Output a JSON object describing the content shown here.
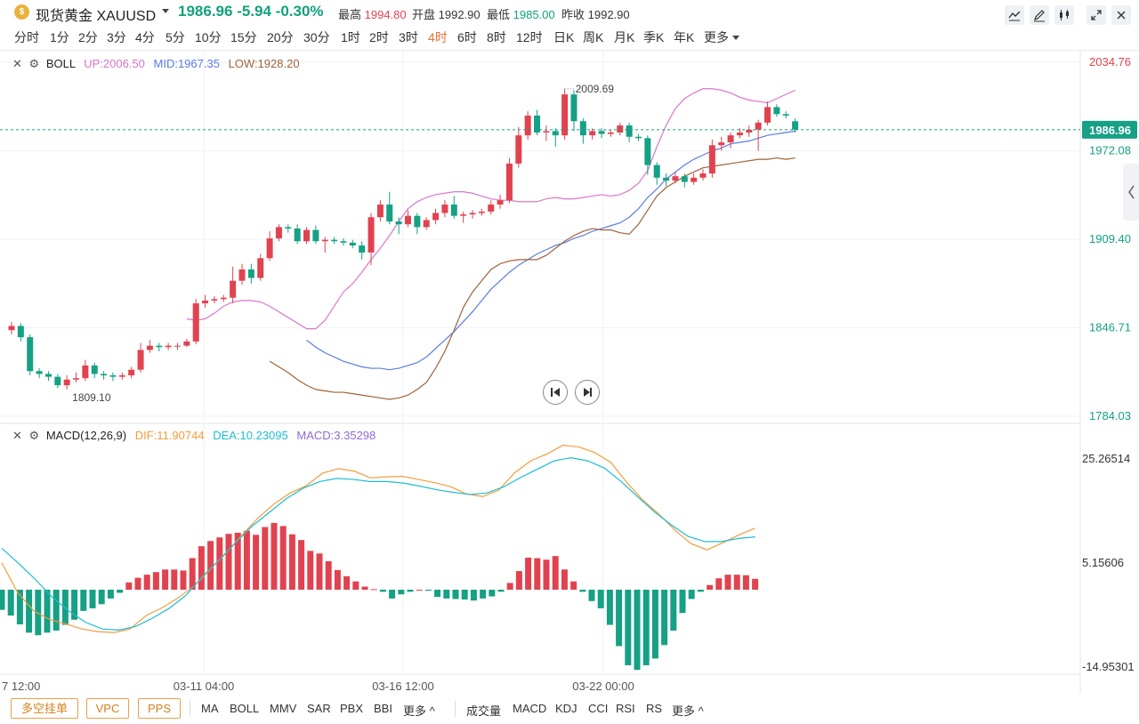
{
  "header": {
    "coin_icon": "gold-coin-icon",
    "symbol": "现货黄金 XAUUSD",
    "last": "1986.96",
    "change": "-5.94",
    "change_pct": "-0.30%",
    "high_label": "最高",
    "high": "1994.80",
    "open_label": "开盘",
    "open": "1992.90",
    "low_label": "最低",
    "low": "1985.00",
    "prev_label": "昨收",
    "prev": "1992.90",
    "tools": [
      "line-tool-icon",
      "pen-tool-icon",
      "candle-settings-icon",
      "fullscreen-icon"
    ]
  },
  "timeframes": {
    "items": [
      "分时",
      "1分",
      "2分",
      "3分",
      "4分",
      "5分",
      "10分",
      "15分",
      "20分",
      "30分",
      "1时",
      "2时",
      "3时",
      "4时",
      "6时",
      "8时",
      "12时",
      "日K",
      "周K",
      "月K",
      "季K",
      "年K",
      "更多"
    ],
    "active": "4时"
  },
  "boll": {
    "label": "BOLL",
    "up": "UP:2006.50",
    "mid": "MID:1967.35",
    "low": "LOW:1928.20"
  },
  "macd": {
    "label": "MACD(12,26,9)",
    "dif": "DIF:11.90744",
    "dea": "DEA:10.23095",
    "hist": "MACD:3.35298"
  },
  "price_axis": [
    "2034.76",
    "1972.08",
    "1909.40",
    "1846.71",
    "1784.03"
  ],
  "current_price_tag": "1986.96",
  "macd_axis": [
    "25.26514",
    "5.15606",
    "-14.95301"
  ],
  "time_axis": [
    "7 12:00",
    "03-11 04:00",
    "03-16 12:00",
    "03-22 00:00"
  ],
  "annotations": {
    "peak": "2009.69",
    "trough": "1809.10"
  },
  "colors": {
    "up": "#e0434f",
    "down": "#16a085",
    "boll_up": "#d977c9",
    "boll_mid": "#5b7be6",
    "boll_low": "#a0623a",
    "dif": "#f39c3d",
    "dea": "#1fbcd2",
    "macd_text": "#8e6ad8"
  },
  "bottom_bar": {
    "pills": [
      "多空挂单",
      "VPC",
      "PPS"
    ],
    "main_indicators": [
      "MA",
      "BOLL",
      "MMV",
      "SAR",
      "PBX",
      "BBI",
      "更多 ^"
    ],
    "sub_indicators": [
      "成交量",
      "MACD",
      "KDJ",
      "CCI",
      "RSI",
      "RS",
      "更多 ^"
    ]
  },
  "chart_data": {
    "type": "candlestick",
    "title": "现货黄金 XAUUSD",
    "ylim": [
      1784.03,
      2034.76
    ],
    "x_ticks": [
      "7 12:00",
      "03-11 04:00",
      "03-16 12:00",
      "03-22 00:00"
    ],
    "candles": [
      {
        "o": 1845,
        "c": 1848,
        "h": 1851,
        "l": 1842
      },
      {
        "o": 1848,
        "c": 1840,
        "h": 1850,
        "l": 1837
      },
      {
        "o": 1840,
        "c": 1816,
        "h": 1842,
        "l": 1813
      },
      {
        "o": 1816,
        "c": 1814,
        "h": 1818,
        "l": 1811
      },
      {
        "o": 1814,
        "c": 1812,
        "h": 1816,
        "l": 1809
      },
      {
        "o": 1812,
        "c": 1806,
        "h": 1814,
        "l": 1804
      },
      {
        "o": 1806,
        "c": 1810,
        "h": 1813,
        "l": 1803
      },
      {
        "o": 1810,
        "c": 1811,
        "h": 1815,
        "l": 1808
      },
      {
        "o": 1811,
        "c": 1820,
        "h": 1824,
        "l": 1809
      },
      {
        "o": 1820,
        "c": 1814,
        "h": 1822,
        "l": 1811
      },
      {
        "o": 1814,
        "c": 1813,
        "h": 1816,
        "l": 1810
      },
      {
        "o": 1813,
        "c": 1812,
        "h": 1815,
        "l": 1809
      },
      {
        "o": 1812,
        "c": 1813,
        "h": 1815,
        "l": 1810
      },
      {
        "o": 1813,
        "c": 1817,
        "h": 1819,
        "l": 1811
      },
      {
        "o": 1817,
        "c": 1831,
        "h": 1836,
        "l": 1815
      },
      {
        "o": 1831,
        "c": 1834,
        "h": 1838,
        "l": 1829
      },
      {
        "o": 1834,
        "c": 1833,
        "h": 1836,
        "l": 1830
      },
      {
        "o": 1833,
        "c": 1834,
        "h": 1836,
        "l": 1831
      },
      {
        "o": 1834,
        "c": 1834,
        "h": 1836,
        "l": 1831
      },
      {
        "o": 1834,
        "c": 1837,
        "h": 1839,
        "l": 1833
      },
      {
        "o": 1837,
        "c": 1864,
        "h": 1867,
        "l": 1835
      },
      {
        "o": 1864,
        "c": 1866,
        "h": 1870,
        "l": 1861
      },
      {
        "o": 1866,
        "c": 1867,
        "h": 1869,
        "l": 1864
      },
      {
        "o": 1867,
        "c": 1868,
        "h": 1870,
        "l": 1865
      },
      {
        "o": 1868,
        "c": 1880,
        "h": 1890,
        "l": 1864
      },
      {
        "o": 1880,
        "c": 1888,
        "h": 1892,
        "l": 1877
      },
      {
        "o": 1888,
        "c": 1882,
        "h": 1892,
        "l": 1878
      },
      {
        "o": 1882,
        "c": 1896,
        "h": 1899,
        "l": 1880
      },
      {
        "o": 1896,
        "c": 1910,
        "h": 1915,
        "l": 1894
      },
      {
        "o": 1910,
        "c": 1918,
        "h": 1920,
        "l": 1908
      },
      {
        "o": 1918,
        "c": 1917,
        "h": 1920,
        "l": 1914
      },
      {
        "o": 1917,
        "c": 1908,
        "h": 1920,
        "l": 1906
      },
      {
        "o": 1908,
        "c": 1916,
        "h": 1918,
        "l": 1906
      },
      {
        "o": 1916,
        "c": 1908,
        "h": 1919,
        "l": 1906
      },
      {
        "o": 1908,
        "c": 1909,
        "h": 1911,
        "l": 1900
      },
      {
        "o": 1909,
        "c": 1908,
        "h": 1911,
        "l": 1906
      },
      {
        "o": 1908,
        "c": 1907,
        "h": 1910,
        "l": 1905
      },
      {
        "o": 1907,
        "c": 1905,
        "h": 1909,
        "l": 1903
      },
      {
        "o": 1905,
        "c": 1900,
        "h": 1908,
        "l": 1895
      },
      {
        "o": 1900,
        "c": 1925,
        "h": 1928,
        "l": 1891
      },
      {
        "o": 1925,
        "c": 1934,
        "h": 1937,
        "l": 1922
      },
      {
        "o": 1934,
        "c": 1922,
        "h": 1943,
        "l": 1920
      },
      {
        "o": 1922,
        "c": 1920,
        "h": 1925,
        "l": 1913
      },
      {
        "o": 1920,
        "c": 1926,
        "h": 1930,
        "l": 1918
      },
      {
        "o": 1926,
        "c": 1918,
        "h": 1928,
        "l": 1913
      },
      {
        "o": 1918,
        "c": 1923,
        "h": 1925,
        "l": 1916
      },
      {
        "o": 1923,
        "c": 1928,
        "h": 1931,
        "l": 1920
      },
      {
        "o": 1928,
        "c": 1934,
        "h": 1937,
        "l": 1925
      },
      {
        "o": 1934,
        "c": 1926,
        "h": 1940,
        "l": 1924
      },
      {
        "o": 1926,
        "c": 1927,
        "h": 1929,
        "l": 1921
      },
      {
        "o": 1927,
        "c": 1928,
        "h": 1930,
        "l": 1924
      },
      {
        "o": 1928,
        "c": 1929,
        "h": 1931,
        "l": 1926
      },
      {
        "o": 1929,
        "c": 1934,
        "h": 1937,
        "l": 1927
      },
      {
        "o": 1934,
        "c": 1937,
        "h": 1941,
        "l": 1931
      },
      {
        "o": 1937,
        "c": 1963,
        "h": 1967,
        "l": 1935
      },
      {
        "o": 1963,
        "c": 1983,
        "h": 1989,
        "l": 1960
      },
      {
        "o": 1983,
        "c": 1997,
        "h": 2000,
        "l": 1980
      },
      {
        "o": 1997,
        "c": 1985,
        "h": 2001,
        "l": 1983
      },
      {
        "o": 1985,
        "c": 1986,
        "h": 1990,
        "l": 1979
      },
      {
        "o": 1986,
        "c": 1983,
        "h": 1988,
        "l": 1975
      },
      {
        "o": 1983,
        "c": 2012,
        "h": 2016,
        "l": 1980
      },
      {
        "o": 2012,
        "c": 1993,
        "h": 2015,
        "l": 1986
      },
      {
        "o": 1993,
        "c": 1983,
        "h": 1995,
        "l": 1977
      },
      {
        "o": 1983,
        "c": 1986,
        "h": 1988,
        "l": 1980
      },
      {
        "o": 1986,
        "c": 1984,
        "h": 1988,
        "l": 1981
      },
      {
        "o": 1984,
        "c": 1985,
        "h": 1987,
        "l": 1982
      },
      {
        "o": 1985,
        "c": 1990,
        "h": 1992,
        "l": 1983
      },
      {
        "o": 1990,
        "c": 1982,
        "h": 1992,
        "l": 1978
      },
      {
        "o": 1982,
        "c": 1981,
        "h": 1984,
        "l": 1979
      },
      {
        "o": 1981,
        "c": 1962,
        "h": 1983,
        "l": 1955
      },
      {
        "o": 1962,
        "c": 1953,
        "h": 1964,
        "l": 1948
      },
      {
        "o": 1953,
        "c": 1951,
        "h": 1956,
        "l": 1947
      },
      {
        "o": 1951,
        "c": 1954,
        "h": 1957,
        "l": 1949
      },
      {
        "o": 1954,
        "c": 1950,
        "h": 1956,
        "l": 1946
      },
      {
        "o": 1950,
        "c": 1953,
        "h": 1956,
        "l": 1948
      },
      {
        "o": 1953,
        "c": 1956,
        "h": 1959,
        "l": 1951
      },
      {
        "o": 1956,
        "c": 1976,
        "h": 1980,
        "l": 1953
      },
      {
        "o": 1976,
        "c": 1978,
        "h": 1982,
        "l": 1972
      },
      {
        "o": 1978,
        "c": 1983,
        "h": 1985,
        "l": 1974
      },
      {
        "o": 1983,
        "c": 1985,
        "h": 1988,
        "l": 1981
      },
      {
        "o": 1985,
        "c": 1987,
        "h": 1990,
        "l": 1982
      },
      {
        "o": 1987,
        "c": 1992,
        "h": 1994,
        "l": 1972
      },
      {
        "o": 1992,
        "c": 2003,
        "h": 2007,
        "l": 1990
      },
      {
        "o": 2003,
        "c": 1998,
        "h": 2005,
        "l": 1996
      },
      {
        "o": 1998,
        "c": 1997,
        "h": 2000,
        "l": 1995
      },
      {
        "o": 1993,
        "c": 1987,
        "h": 1995,
        "l": 1985
      }
    ],
    "boll_up": [
      1853,
      1852,
      1853,
      1857,
      1862,
      1865,
      1866,
      1866,
      1865,
      1862,
      1858,
      1854,
      1850,
      1846,
      1846,
      1852,
      1862,
      1872,
      1878,
      1886,
      1895,
      1903,
      1912,
      1922,
      1931,
      1936,
      1939,
      1941,
      1942,
      1943,
      1943,
      1942,
      1940,
      1938,
      1937,
      1937,
      1936,
      1936,
      1936,
      1938,
      1939,
      1938,
      1938,
      1939,
      1940,
      1941,
      1940,
      1941,
      1944,
      1949,
      1958,
      1975,
      1990,
      2002,
      2009,
      2013,
      2016,
      2016,
      2015,
      2013,
      2010,
      2008,
      2007,
      2006,
      2009,
      2012,
      2015
    ],
    "boll_mid": [
      1838,
      1833,
      1829,
      1826,
      1823,
      1821,
      1819,
      1818,
      1818,
      1817,
      1818,
      1820,
      1822,
      1826,
      1832,
      1838,
      1844,
      1851,
      1858,
      1866,
      1874,
      1880,
      1886,
      1891,
      1895,
      1899,
      1902,
      1905,
      1907,
      1910,
      1912,
      1915,
      1917,
      1919,
      1921,
      1925,
      1931,
      1939,
      1945,
      1952,
      1957,
      1962,
      1966,
      1969,
      1972,
      1974,
      1977,
      1978,
      1979,
      1981,
      1983,
      1984,
      1985,
      1986
    ],
    "boll_low": [
      1823,
      1819,
      1815,
      1810,
      1806,
      1803,
      1802,
      1801,
      1801,
      1800,
      1799,
      1798,
      1797,
      1796,
      1797,
      1799,
      1803,
      1808,
      1818,
      1830,
      1845,
      1861,
      1872,
      1880,
      1888,
      1892,
      1894,
      1895,
      1895,
      1895,
      1898,
      1903,
      1908,
      1912,
      1915,
      1917,
      1916,
      1916,
      1914,
      1913,
      1920,
      1930,
      1940,
      1946,
      1950,
      1954,
      1957,
      1960,
      1961,
      1962,
      1963,
      1964,
      1965,
      1966,
      1966,
      1967,
      1966,
      1967
    ],
    "macd_hist": [
      -3.9,
      -5.0,
      -6.7,
      -8.3,
      -8.8,
      -8.3,
      -7.9,
      -6.8,
      -5.8,
      -4.1,
      -3.6,
      -2.8,
      -1.7,
      -0.6,
      1.4,
      2.3,
      2.9,
      3.4,
      3.9,
      3.9,
      3.7,
      6.1,
      8.4,
      9.4,
      10.1,
      10.8,
      11.0,
      11.4,
      10.6,
      12.1,
      12.9,
      12.3,
      10.7,
      9.6,
      7.5,
      7.0,
      5.5,
      3.8,
      2.6,
      1.6,
      0.6,
      0.1,
      -0.4,
      -1.7,
      -0.9,
      -0.4,
      0.0,
      -0.2,
      -1.4,
      -1.7,
      -1.8,
      -1.9,
      -2.1,
      -1.7,
      -1.3,
      -0.4,
      1.3,
      3.6,
      6.2,
      6.1,
      5.8,
      6.5,
      3.9,
      1.6,
      -0.4
    ],
    "macd_hist_tail": [
      -2.2,
      -3.6,
      -6.8,
      -10.9,
      -14.6,
      -15.5,
      -14.6,
      -13.3,
      -10.7,
      -7.9,
      -4.5,
      -1.8,
      -0.4,
      0.9,
      2.2,
      2.9,
      2.9,
      2.8,
      2.1
    ],
    "dif": [
      5.2,
      -0.6,
      -4.1,
      -5.8,
      -6.6,
      -7.6,
      -8.1,
      -8.3,
      -7.6,
      -5.0,
      -3.5,
      -1.6,
      0.7,
      3.9,
      7.1,
      10.6,
      13.9,
      16.6,
      18.7,
      20.1,
      22.5,
      23.4,
      22.9,
      21.6,
      21.8,
      21.9,
      21.3,
      20.7,
      19.9,
      18.5,
      18.0,
      19.2,
      22.6,
      24.9,
      26.2,
      27.9,
      27.6,
      26.5,
      24.6,
      20.7,
      17.3,
      14.6,
      11.5,
      8.9,
      7.7,
      9.1,
      10.6,
      11.9
    ],
    "dea": [
      8.0,
      5.1,
      2.0,
      -1.4,
      -4.1,
      -6.3,
      -7.6,
      -7.8,
      -7.1,
      -5.5,
      -3.6,
      -1.1,
      2.6,
      5.8,
      9.2,
      12.4,
      15.0,
      17.6,
      19.6,
      20.9,
      21.5,
      21.3,
      20.9,
      20.9,
      20.6,
      20.0,
      19.3,
      18.8,
      18.4,
      18.7,
      19.9,
      21.7,
      23.3,
      24.9,
      25.5,
      24.9,
      23.5,
      20.9,
      17.9,
      15.0,
      12.5,
      10.3,
      9.3,
      9.3,
      9.9,
      10.2
    ]
  }
}
